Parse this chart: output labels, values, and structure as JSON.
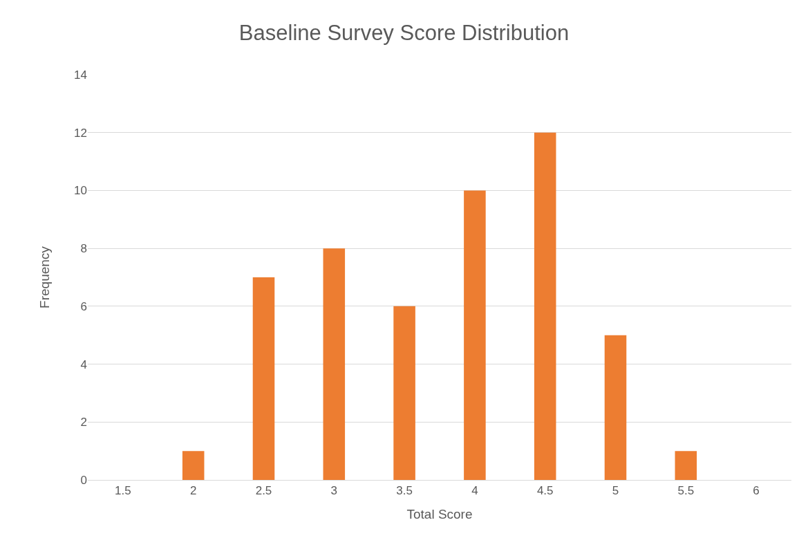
{
  "chart_data": {
    "type": "bar",
    "title": "Baseline Survey Score Distribution",
    "xlabel": "Total Score",
    "ylabel": "Frequency",
    "categories": [
      "1.5",
      "2",
      "2.5",
      "3",
      "3.5",
      "4",
      "4.5",
      "5",
      "5.5",
      "6"
    ],
    "values": [
      0,
      1,
      7,
      8,
      6,
      10,
      12,
      5,
      1,
      0
    ],
    "color": "#ed7d31",
    "ylim": [
      0,
      14
    ],
    "yticks": [
      0,
      2,
      4,
      6,
      8,
      10,
      12,
      14
    ],
    "grid": "y"
  }
}
